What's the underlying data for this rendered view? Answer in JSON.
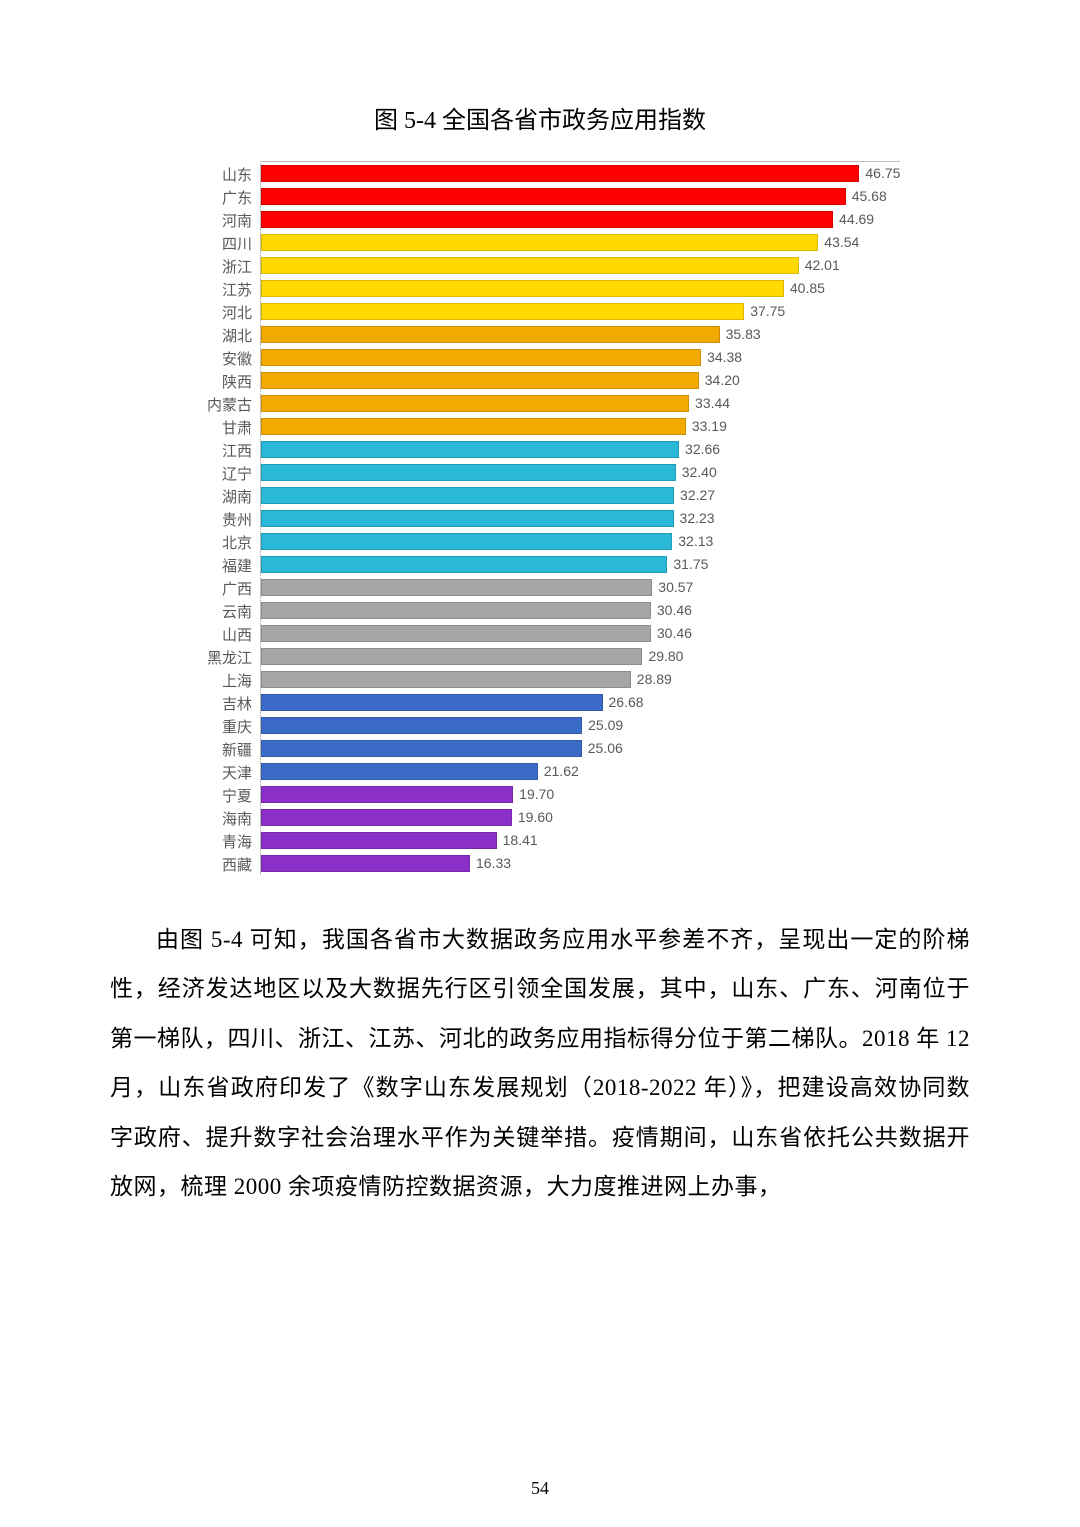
{
  "chart": {
    "title": "图 5-4 全国各省市政务应用指数",
    "type": "bar",
    "xmax": 50,
    "grid_color": "#bfbfbf",
    "label_color": "#595959",
    "label_fontsize": 15,
    "value_fontsize": 14,
    "colors": {
      "red": "#ff0000",
      "yellow": "#ffd900",
      "orange": "#f2a900",
      "teal": "#29b8d6",
      "gray": "#a6a6a6",
      "blue": "#3a6cc7",
      "purple": "#8a2fc7"
    },
    "bars": [
      {
        "label": "山东",
        "value": 46.75,
        "color": "red"
      },
      {
        "label": "广东",
        "value": 45.68,
        "color": "red"
      },
      {
        "label": "河南",
        "value": 44.69,
        "color": "red"
      },
      {
        "label": "四川",
        "value": 43.54,
        "color": "yellow"
      },
      {
        "label": "浙江",
        "value": 42.01,
        "color": "yellow"
      },
      {
        "label": "江苏",
        "value": 40.85,
        "color": "yellow"
      },
      {
        "label": "河北",
        "value": 37.75,
        "color": "yellow"
      },
      {
        "label": "湖北",
        "value": 35.83,
        "color": "orange"
      },
      {
        "label": "安徽",
        "value": 34.38,
        "color": "orange"
      },
      {
        "label": "陕西",
        "value": 34.2,
        "color": "orange"
      },
      {
        "label": "内蒙古",
        "value": 33.44,
        "color": "orange"
      },
      {
        "label": "甘肃",
        "value": 33.19,
        "color": "orange"
      },
      {
        "label": "江西",
        "value": 32.66,
        "color": "teal"
      },
      {
        "label": "辽宁",
        "value": 32.4,
        "color": "teal"
      },
      {
        "label": "湖南",
        "value": 32.27,
        "color": "teal"
      },
      {
        "label": "贵州",
        "value": 32.23,
        "color": "teal"
      },
      {
        "label": "北京",
        "value": 32.13,
        "color": "teal"
      },
      {
        "label": "福建",
        "value": 31.75,
        "color": "teal"
      },
      {
        "label": "广西",
        "value": 30.57,
        "color": "gray"
      },
      {
        "label": "云南",
        "value": 30.46,
        "color": "gray"
      },
      {
        "label": "山西",
        "value": 30.46,
        "color": "gray"
      },
      {
        "label": "黑龙江",
        "value": 29.8,
        "color": "gray"
      },
      {
        "label": "上海",
        "value": 28.89,
        "color": "gray"
      },
      {
        "label": "吉林",
        "value": 26.68,
        "color": "blue"
      },
      {
        "label": "重庆",
        "value": 25.09,
        "color": "blue"
      },
      {
        "label": "新疆",
        "value": 25.06,
        "color": "blue"
      },
      {
        "label": "天津",
        "value": 21.62,
        "color": "blue"
      },
      {
        "label": "宁夏",
        "value": 19.7,
        "color": "purple"
      },
      {
        "label": "海南",
        "value": 19.6,
        "color": "purple"
      },
      {
        "label": "青海",
        "value": 18.41,
        "color": "purple"
      },
      {
        "label": "西藏",
        "value": 16.33,
        "color": "purple"
      }
    ]
  },
  "paragraph": "由图 5-4 可知，我国各省市大数据政务应用水平参差不齐，呈现出一定的阶梯性，经济发达地区以及大数据先行区引领全国发展，其中，山东、广东、河南位于第一梯队，四川、浙江、江苏、河北的政务应用指标得分位于第二梯队。2018 年 12 月，山东省政府印发了《数字山东发展规划（2018-2022 年）》，把建设高效协同数字政府、提升数字社会治理水平作为关键举措。疫情期间，山东省依托公共数据开放网，梳理 2000 余项疫情防控数据资源，大力度推进网上办事，",
  "page_number": "54"
}
